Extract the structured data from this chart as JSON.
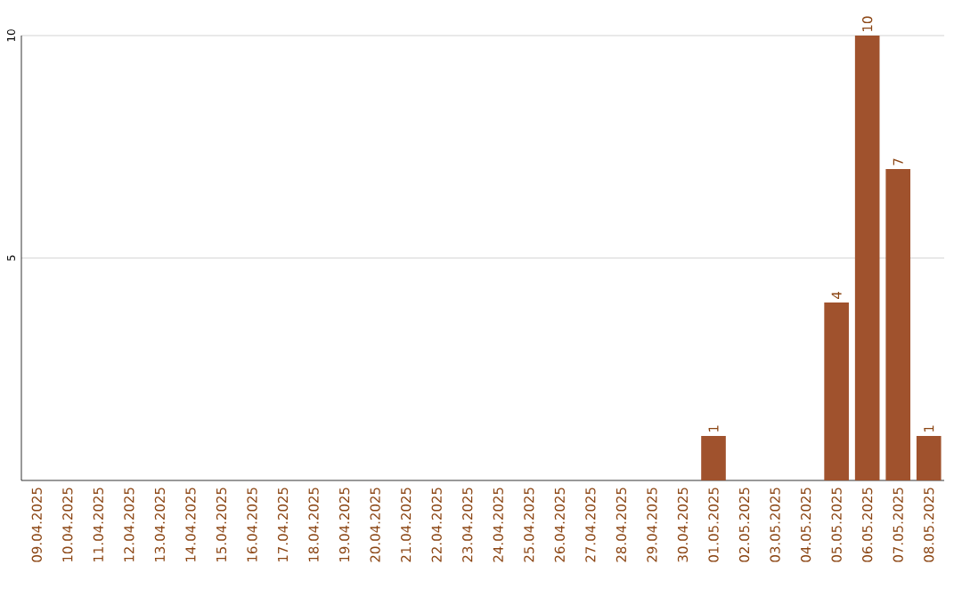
{
  "chart_data": {
    "type": "bar",
    "categories": [
      "09.04.2025",
      "10.04.2025",
      "11.04.2025",
      "12.04.2025",
      "13.04.2025",
      "14.04.2025",
      "15.04.2025",
      "16.04.2025",
      "17.04.2025",
      "18.04.2025",
      "19.04.2025",
      "20.04.2025",
      "21.04.2025",
      "22.04.2025",
      "23.04.2025",
      "24.04.2025",
      "25.04.2025",
      "26.04.2025",
      "27.04.2025",
      "28.04.2025",
      "29.04.2025",
      "30.04.2025",
      "01.05.2025",
      "02.05.2025",
      "03.05.2025",
      "04.05.2025",
      "05.05.2025",
      "06.05.2025",
      "07.05.2025",
      "08.05.2025"
    ],
    "values": [
      0,
      0,
      0,
      0,
      0,
      0,
      0,
      0,
      0,
      0,
      0,
      0,
      0,
      0,
      0,
      0,
      0,
      0,
      0,
      0,
      0,
      0,
      1,
      0,
      0,
      0,
      4,
      10,
      7,
      1
    ],
    "value_labels": [
      null,
      null,
      null,
      null,
      null,
      null,
      null,
      null,
      null,
      null,
      null,
      null,
      null,
      null,
      null,
      null,
      null,
      null,
      null,
      null,
      null,
      null,
      "1",
      null,
      null,
      null,
      "4",
      "10",
      "7",
      "1"
    ],
    "color": "#a0522d",
    "ylim": [
      0,
      10
    ],
    "yticks": [
      5,
      10
    ],
    "grid": "y"
  }
}
